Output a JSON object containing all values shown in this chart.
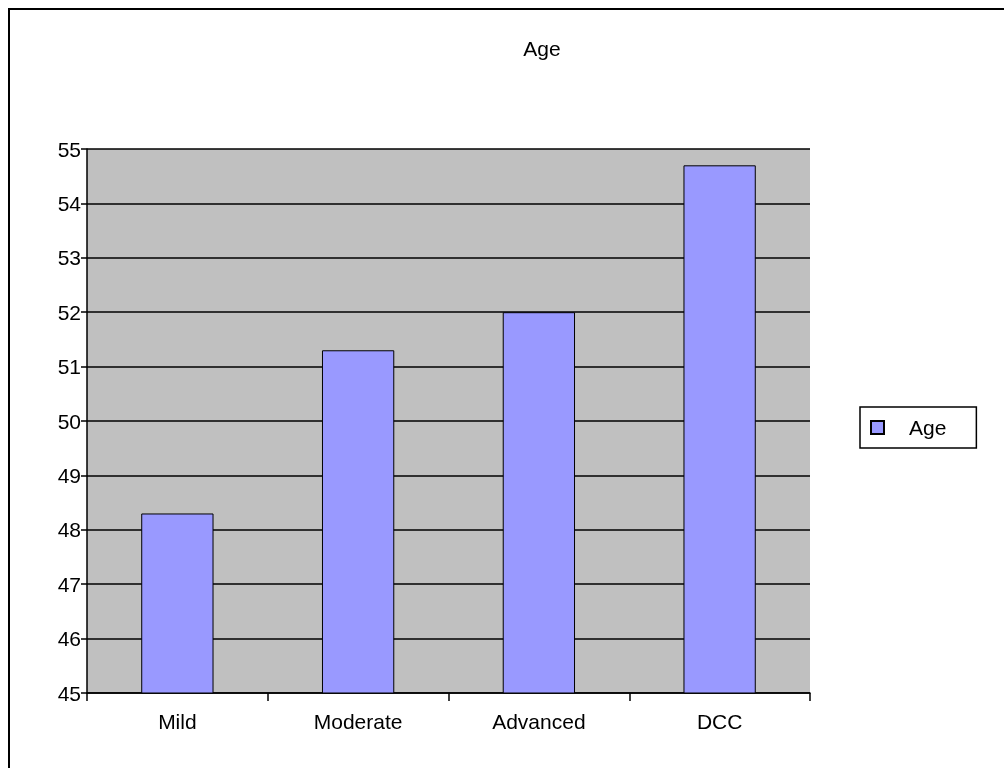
{
  "chart_data": {
    "type": "bar",
    "title": "Age",
    "categories": [
      "Mild",
      "Moderate",
      "Advanced",
      "DCC"
    ],
    "series": [
      {
        "name": "Age",
        "color": "#9999ff",
        "values": [
          48.3,
          51.3,
          52.0,
          54.7
        ]
      }
    ],
    "ylim": [
      45,
      55
    ],
    "yticks": [
      45,
      46,
      47,
      48,
      49,
      50,
      51,
      52,
      53,
      54,
      55
    ],
    "grid": "y",
    "legend": "right"
  }
}
